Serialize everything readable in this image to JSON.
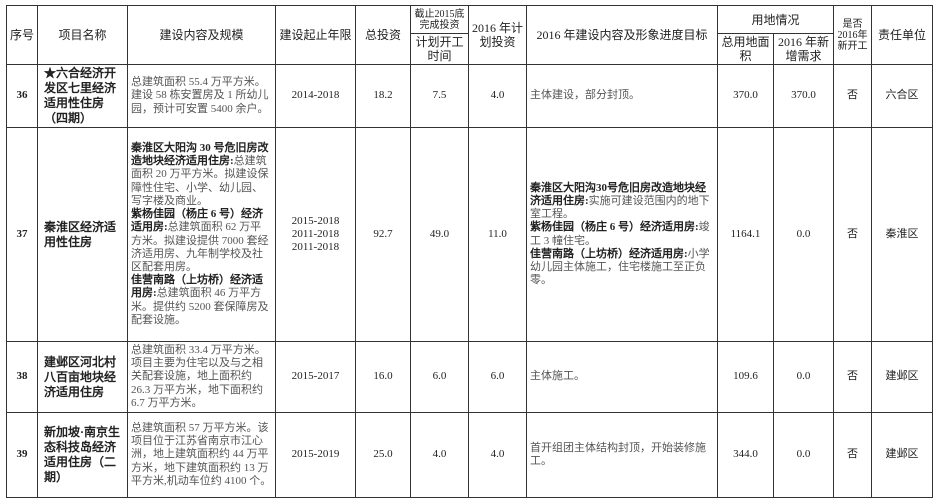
{
  "header": {
    "seq": "序号",
    "name": "项目名称",
    "content": "建设内容及规模",
    "period": "建设起止年限",
    "total_investment": "总投资",
    "completed_2015": "截止2015底完成投资",
    "planned_start": "计划开工时间",
    "plan_2016": "2016 年计划投资",
    "goal_2016": "2016 年建设内容及形象进度目标",
    "land": "用地情况",
    "land_total": "总用地面积",
    "land_new": "2016 年新增需求",
    "new_start": "是否2016年新开工",
    "unit": "责任单位"
  },
  "rows": [
    {
      "seq": "36",
      "name": "★六合经济开发区七里经济适用性住房（四期）",
      "content": "总建筑面积 55.4 万平方米。建设 58 栋安置房及 1 所幼儿园，预计可安置 5400 余户。",
      "period": "2014-2018",
      "total": "18.2",
      "completed": "7.5",
      "plan_2016": "4.0",
      "goal": "主体建设，部分封顶。",
      "land_total": "370.0",
      "land_new": "370.0",
      "new_start": "否",
      "unit": "六合区"
    },
    {
      "seq": "37",
      "name": "秦淮区经济适用性住房",
      "content": [
        {
          "title": "秦淮区大阳沟 30 号危旧房改造地块经济适用住房:",
          "text": "总建筑面积 20 万平方米。拟建设保障性住宅、小学、幼儿园、写字楼及商业。"
        },
        {
          "title": "紫杨佳园（杨庄 6 号）经济适用房:",
          "text": "总建筑面积 62 万平方米。拟建设提供 7000 套经济适用房、九年制学校及社区配套用房。"
        },
        {
          "title": "佳营南路（上坊桥）经济适用房:",
          "text": "总建筑面积 46 万平方米。提供约 5200 套保障房及配套设施。"
        }
      ],
      "period": [
        "2015-2018",
        "2011-2018",
        "2011-2018"
      ],
      "total": "92.7",
      "completed": "49.0",
      "plan_2016": "11.0",
      "goal": [
        {
          "title": "秦淮区大阳沟30号危旧房改造地块经济适用住房:",
          "text": "实施可建设范围内的地下室工程。"
        },
        {
          "title": "紫杨佳园（杨庄 6 号）经济适用房:",
          "text": "竣工 3 幢住宅。"
        },
        {
          "title": "佳营南路（上坊桥）经济适用房:",
          "text": "小学幼儿园主体施工，住宅楼施工至正负零。"
        }
      ],
      "land_total": "1164.1",
      "land_new": "0.0",
      "new_start": "否",
      "unit": "秦淮区"
    },
    {
      "seq": "38",
      "name": "建邺区河北村八百亩地块经济适用住房",
      "content": "总建筑面积 33.4 万平方米。项目主要为住宅以及与之相关配套设施，地上面积约 26.3 万平方米，地下面积约 6.7 万平方米。",
      "period": "2015-2017",
      "total": "16.0",
      "completed": "6.0",
      "plan_2016": "6.0",
      "goal": "主体施工。",
      "land_total": "109.6",
      "land_new": "0.0",
      "new_start": "否",
      "unit": "建邺区"
    },
    {
      "seq": "39",
      "name": "新加坡·南京生态科技岛经济适用住房（二期）",
      "content": "总建筑面积 57 万平方米。该项目位于江苏省南京市江心洲，地上建筑面积约 44 万平方米，地下建筑面积约 13 万平方米,机动车位约 4100 个。",
      "period": "2015-2019",
      "total": "25.0",
      "completed": "4.0",
      "plan_2016": "4.0",
      "goal": "首开组团主体结构封顶，开始装修施工。",
      "land_total": "344.0",
      "land_new": "0.0",
      "new_start": "否",
      "unit": "建邺区"
    }
  ]
}
